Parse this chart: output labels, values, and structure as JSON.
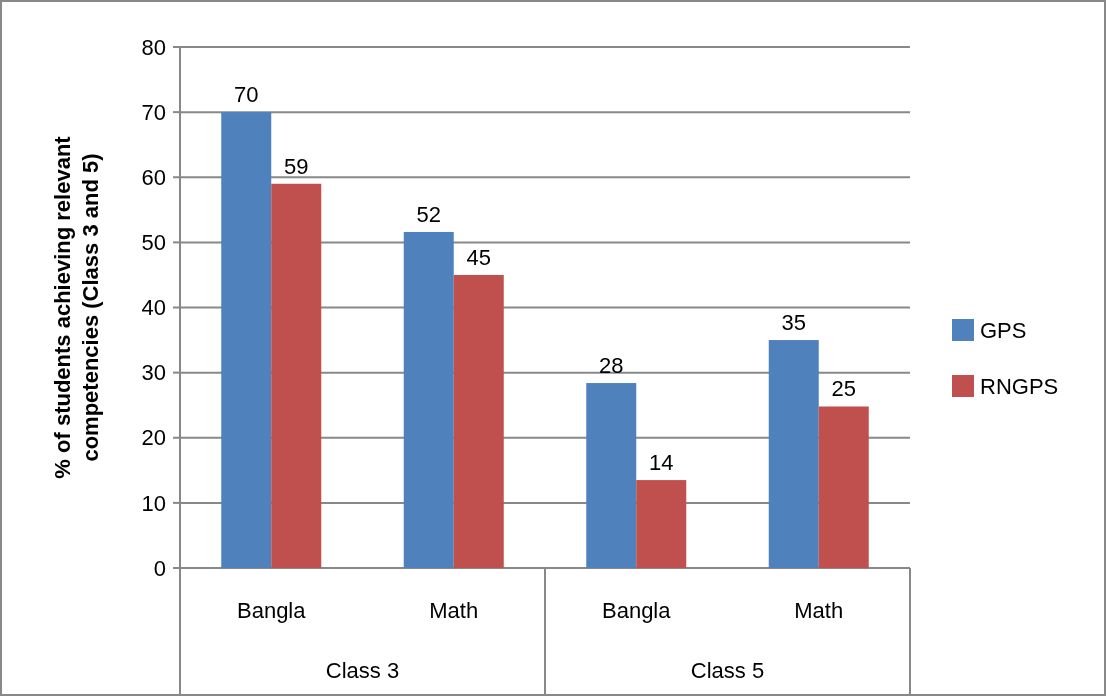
{
  "chart_data": {
    "type": "bar",
    "ylabel": "% of students  achieving relevant competencies  (Class 3 and 5)",
    "categories": [
      "Bangla",
      "Math",
      "Bangla",
      "Math"
    ],
    "annotations": [
      "Class 3",
      "Class 5"
    ],
    "series": [
      {
        "name": "GPS",
        "color": "#4f81bd",
        "values": [
          70,
          51.6,
          28.4,
          35
        ],
        "value_labels": [
          "70",
          "52",
          "28",
          "35"
        ]
      },
      {
        "name": "RNGPS",
        "color": "#c0504d",
        "values": [
          59,
          45,
          13.5,
          24.8
        ],
        "value_labels": [
          "59",
          "45",
          "14",
          "25"
        ]
      }
    ],
    "ylim": [
      0,
      80
    ],
    "yticks": [
      0,
      10,
      20,
      30,
      40,
      50,
      60,
      70,
      80
    ],
    "grid": "y",
    "legend": "right"
  }
}
